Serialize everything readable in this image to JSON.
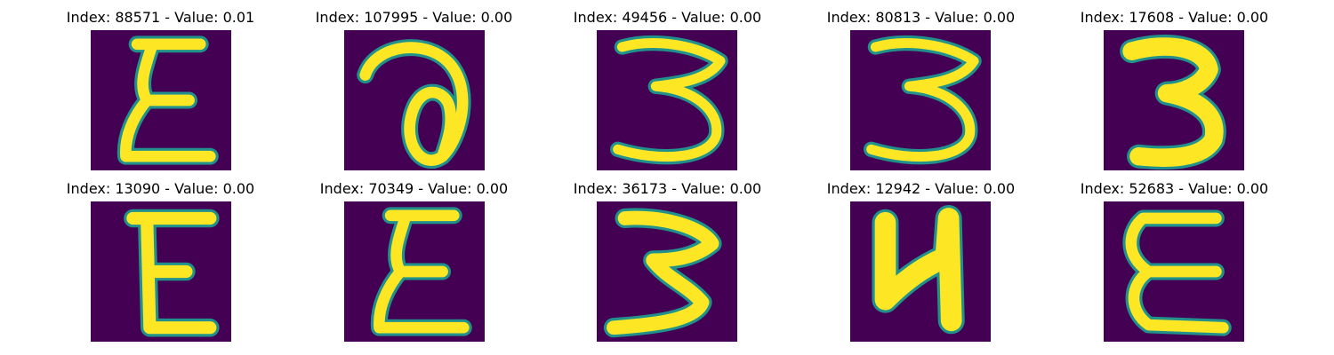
{
  "colors": {
    "background": "#440154",
    "stroke_outer": "#21918c",
    "stroke_inner": "#fde725"
  },
  "panels": [
    {
      "title": "Index: 88571 - Value: 0.01",
      "glyph": "epsilon"
    },
    {
      "title": "Index: 107995 - Value: 0.00",
      "glyph": "a-loop"
    },
    {
      "title": "Index: 49456 - Value: 0.00",
      "glyph": "three"
    },
    {
      "title": "Index: 80813 - Value: 0.00",
      "glyph": "three"
    },
    {
      "title": "Index: 17608 - Value: 0.00",
      "glyph": "three-bold"
    },
    {
      "title": "Index: 13090 - Value: 0.00",
      "glyph": "E"
    },
    {
      "title": "Index: 70349 - Value: 0.00",
      "glyph": "epsilon"
    },
    {
      "title": "Index: 36173 - Value: 0.00",
      "glyph": "three-z"
    },
    {
      "title": "Index: 12942 - Value: 0.00",
      "glyph": "N-bold"
    },
    {
      "title": "Index: 52683 - Value: 0.00",
      "glyph": "epsilon-c"
    }
  ]
}
